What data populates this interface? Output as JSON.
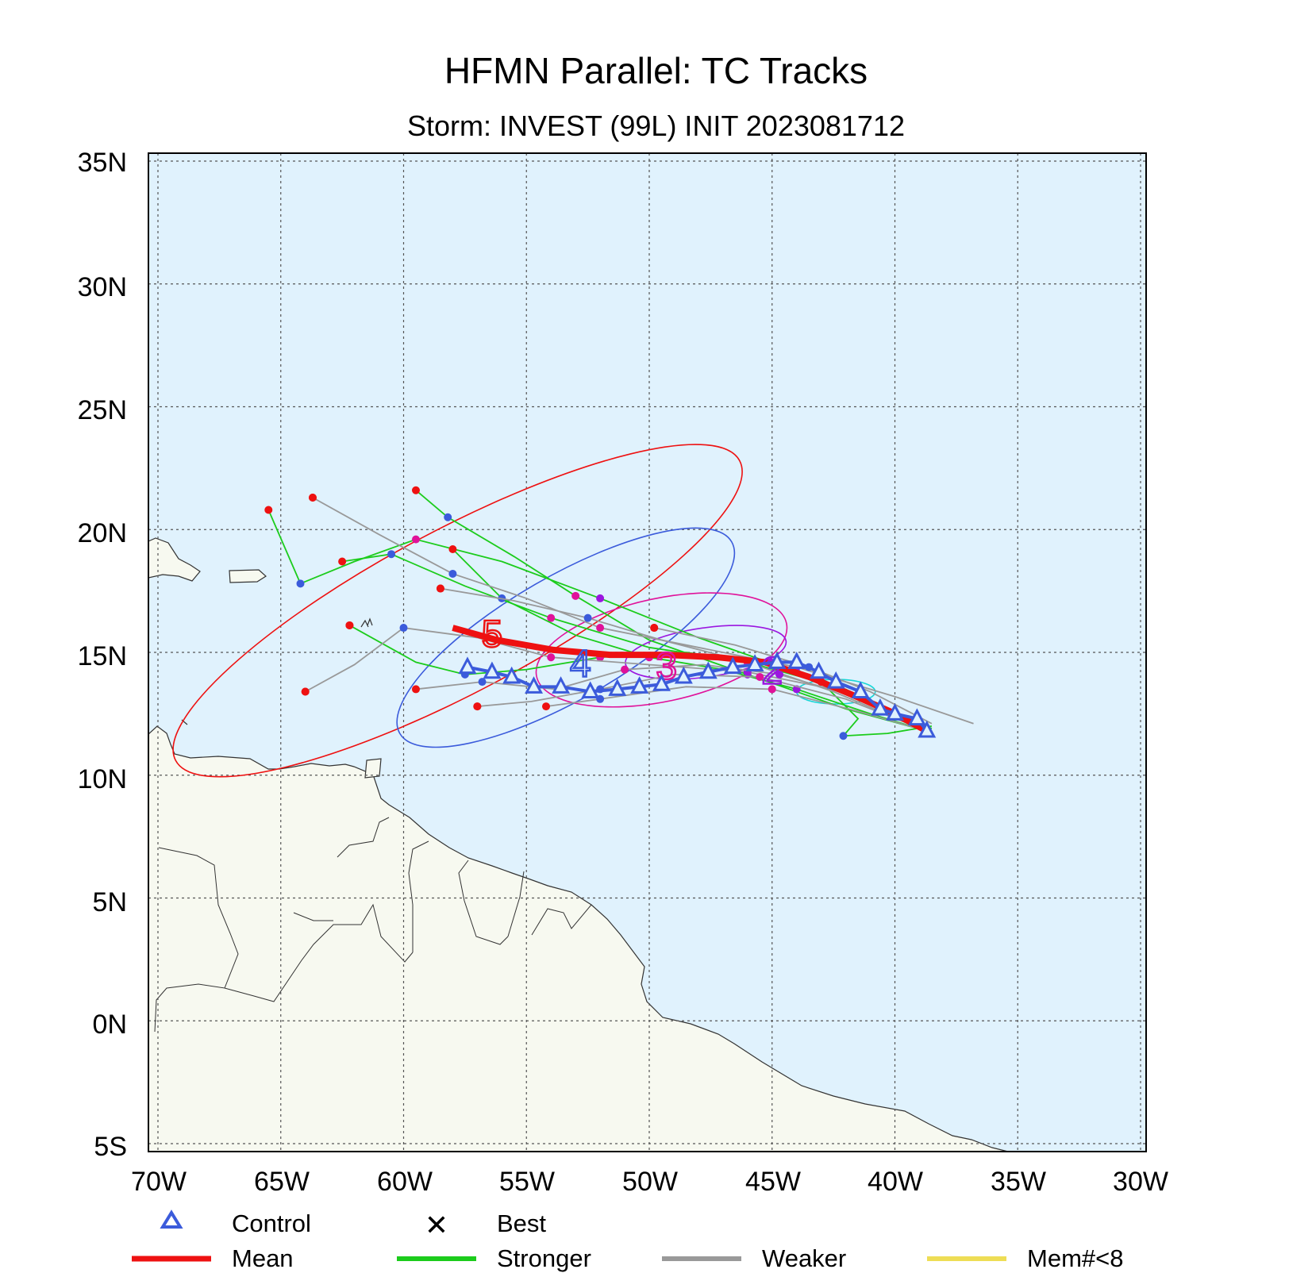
{
  "title": "HFMN Parallel: TC Tracks",
  "subtitle": "Storm: INVEST (99L) INIT 2023081712",
  "map": {
    "lon_range": [
      -70,
      -30
    ],
    "lat_range": [
      -5,
      35
    ],
    "grid": true,
    "ocean_color": "#e0f2fd",
    "land_color": "#f7f9f0",
    "lat_ticks": [
      "35N",
      "30N",
      "25N",
      "20N",
      "15N",
      "10N",
      "5N",
      "0N",
      "5S"
    ],
    "lon_ticks": [
      "70W",
      "65W",
      "60W",
      "55W",
      "50W",
      "45W",
      "40W",
      "35W",
      "30W"
    ]
  },
  "chart_data": {
    "type": "line",
    "mean_track": {
      "lon": [
        -38.7,
        -40.2,
        -41.8,
        -43.5,
        -45.3,
        -47.2,
        -49.3,
        -51.6,
        -53.9,
        -56.2,
        -58.0
      ],
      "lat": [
        11.8,
        12.6,
        13.3,
        14.0,
        14.6,
        14.8,
        14.9,
        14.9,
        15.1,
        15.5,
        16.0
      ],
      "markers": [
        {
          "label": "5",
          "lon": -56.4,
          "lat": 15.8
        },
        {
          "label": "4",
          "lon": -52.8,
          "lat": 14.6
        },
        {
          "label": "3",
          "lon": -49.3,
          "lat": 14.5
        },
        {
          "label": "2",
          "lon": -45.0,
          "lat": 14.3
        }
      ]
    },
    "control_track": {
      "lon": [
        -38.7,
        -39.1,
        -40.0,
        -40.6,
        -41.4,
        -42.4,
        -43.1,
        -44.0,
        -44.8,
        -45.7,
        -46.6,
        -47.6,
        -48.6,
        -49.5,
        -50.4,
        -51.3,
        -52.4,
        -53.6,
        -54.7,
        -55.6,
        -56.4,
        -57.4
      ],
      "lat": [
        11.8,
        12.3,
        12.5,
        12.7,
        13.4,
        13.8,
        14.2,
        14.6,
        14.6,
        14.5,
        14.4,
        14.2,
        14.0,
        13.7,
        13.6,
        13.5,
        13.4,
        13.6,
        13.6,
        14.0,
        14.2,
        14.4
      ]
    },
    "ellipses": [
      {
        "color": "#ee1111",
        "lon": -57.8,
        "lat": 16.7,
        "rx_deg": 13.0,
        "ry_deg": 3.3,
        "angle_deg": 28
      },
      {
        "color": "#3b5bdb",
        "lon": -53.4,
        "lat": 15.6,
        "rx_deg": 7.8,
        "ry_deg": 2.5,
        "angle_deg": 30
      },
      {
        "color": "#e0129a",
        "lon": -49.5,
        "lat": 15.1,
        "rx_deg": 5.2,
        "ry_deg": 2.1,
        "angle_deg": 12
      },
      {
        "color": "#9b17e0",
        "lon": -47.7,
        "lat": 15.0,
        "rx_deg": 3.3,
        "ry_deg": 1.0,
        "angle_deg": 8
      },
      {
        "color": "#18d6d6",
        "lon": -42.4,
        "lat": 13.4,
        "rx_deg": 1.6,
        "ry_deg": 0.5,
        "angle_deg": 0
      }
    ],
    "member_tracks": [
      {
        "type": "stronger",
        "lon": [
          -38.7,
          -41,
          -44,
          -48,
          -52,
          -56,
          -59.5,
          -62,
          -64.2,
          -65.5
        ],
        "lat": [
          11.8,
          13.0,
          14.2,
          15.6,
          17.2,
          18.7,
          19.6,
          18.7,
          17.8,
          20.8
        ]
      },
      {
        "type": "stronger",
        "lon": [
          -38.7,
          -42,
          -46,
          -50,
          -54,
          -57.5,
          -60.5,
          -62.5
        ],
        "lat": [
          11.8,
          13.5,
          14.6,
          15.2,
          16.4,
          17.7,
          19.0,
          18.7
        ]
      },
      {
        "type": "stronger",
        "lon": [
          -38.7,
          -42,
          -46,
          -50,
          -53,
          -55.5,
          -58.2,
          -59.5
        ],
        "lat": [
          11.8,
          12.7,
          14.1,
          15.5,
          17.3,
          18.9,
          20.5,
          21.6
        ]
      },
      {
        "type": "stronger",
        "lon": [
          -38.7,
          -41,
          -44,
          -47,
          -50,
          -53,
          -56,
          -58
        ],
        "lat": [
          11.8,
          12.5,
          13.5,
          14.3,
          14.8,
          15.7,
          17.2,
          19.2
        ]
      },
      {
        "type": "stronger",
        "lon": [
          -38.5,
          -41.5,
          -45,
          -48.5,
          -52,
          -55,
          -57.5,
          -59.5,
          -62.2
        ],
        "lat": [
          11.9,
          13.2,
          14.5,
          15.0,
          14.8,
          14.3,
          14.1,
          14.6,
          16.1
        ]
      },
      {
        "type": "stronger",
        "lon": [
          -38.5,
          -40.3,
          -42.1,
          -41.5,
          -43.0
        ],
        "lat": [
          12.0,
          11.7,
          11.6,
          12.3,
          13.8
        ]
      },
      {
        "type": "weaker",
        "lon": [
          -36.8,
          -40,
          -44,
          -48,
          -52,
          -55,
          -58,
          -61,
          -63.7
        ],
        "lat": [
          12.1,
          13.2,
          14.4,
          15.2,
          16.0,
          17.2,
          18.2,
          19.8,
          21.3
        ]
      },
      {
        "type": "weaker",
        "lon": [
          -38.7,
          -42,
          -46,
          -50,
          -54,
          -57,
          -60,
          -62,
          -64
        ],
        "lat": [
          11.8,
          13.4,
          14.2,
          14.5,
          14.8,
          15.6,
          16.0,
          14.5,
          13.4
        ]
      },
      {
        "type": "weaker",
        "lon": [
          -38.7,
          -41.5,
          -45,
          -48.5,
          -52,
          -54.2
        ],
        "lat": [
          11.8,
          12.6,
          13.5,
          13.6,
          13.1,
          12.8
        ]
      },
      {
        "type": "weaker",
        "lon": [
          -38.7,
          -42,
          -45.5,
          -49,
          -52,
          -54.8,
          -57.0
        ],
        "lat": [
          11.8,
          13.1,
          14.0,
          14.1,
          13.5,
          13.0,
          12.8
        ]
      },
      {
        "type": "weaker",
        "lon": [
          -38.7,
          -42.5,
          -46,
          -49.5,
          -52.5,
          -55.5,
          -58.5
        ],
        "lat": [
          11.8,
          13.4,
          14.6,
          15.5,
          16.4,
          17.1,
          17.6
        ]
      },
      {
        "type": "weaker",
        "lon": [
          -38.5,
          -41,
          -43.5,
          -46.5,
          -49.8
        ],
        "lat": [
          12.1,
          13.4,
          14.4,
          15.3,
          16.0
        ]
      },
      {
        "type": "weaker",
        "lon": [
          -38.6,
          -41.6,
          -44.7,
          -47.8,
          -51.0,
          -53.8,
          -56.8,
          -59.5
        ],
        "lat": [
          12.0,
          13.2,
          14.1,
          14.5,
          14.3,
          13.5,
          13.8,
          13.5
        ]
      }
    ]
  },
  "legend": {
    "items": [
      {
        "label": "Control",
        "symbol": "triangle",
        "color": "#3b5bdb"
      },
      {
        "label": "Best",
        "symbol": "x",
        "color": "#000000"
      },
      {
        "label": "Mean",
        "symbol": "line",
        "color": "#ee1111"
      },
      {
        "label": "Stronger",
        "symbol": "line",
        "color": "#1ccc1c"
      },
      {
        "label": "Weaker",
        "symbol": "line",
        "color": "#999999"
      },
      {
        "label": "Mem#<8",
        "symbol": "line",
        "color": "#eedd55"
      }
    ]
  }
}
